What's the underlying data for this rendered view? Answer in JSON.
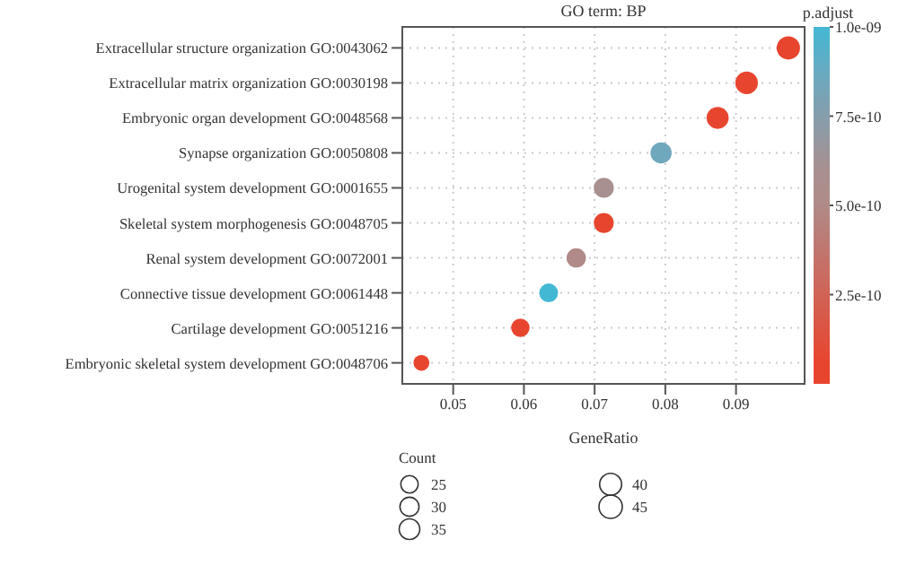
{
  "chart_data": {
    "type": "bubble",
    "orientation": "horizontal",
    "title": "GO term: BP",
    "xlabel": "GeneRatio",
    "clabel": "p.adjust",
    "legend_title": "Count",
    "grid": true,
    "categories": [
      "Extracellular structure organization GO:0043062",
      "Extracellular matrix organization GO:0030198",
      "Embryonic organ development GO:0048568",
      "Synapse organization GO:0050808",
      "Urogenital system development GO:0001655",
      "Skeletal system morphogenesis GO:0048705",
      "Renal system development GO:0072001",
      "Connective tissue development GO:0061448",
      "Cartilage development GO:0051216",
      "Embryonic skeletal system development GO:0048706"
    ],
    "values": [
      0.0974,
      0.0915,
      0.0874,
      0.0794,
      0.0713,
      0.0713,
      0.0674,
      0.0635,
      0.0595,
      0.0455
    ],
    "sizes": [
      45,
      42,
      40,
      37,
      33,
      33,
      31,
      29,
      28,
      21
    ],
    "size_legend": [
      25,
      30,
      35,
      40,
      45
    ],
    "cvalues": [
      2e-11,
      3e-11,
      4e-11,
      8.5e-10,
      6e-10,
      5e-11,
      5e-10,
      1e-09,
      6e-11,
      2e-11
    ],
    "colors": [
      "#e8452f",
      "#e8452f",
      "#e8452f",
      "#6fa7bd",
      "#a89090",
      "#e8452f",
      "#b08a88",
      "#43b8d4",
      "#e8452f",
      "#e8452f"
    ],
    "clim": [
      0,
      1e-09
    ],
    "cticks": [
      {
        "value": 2.5e-10,
        "label": "2.5e-10"
      },
      {
        "value": 5e-10,
        "label": "5.0e-10"
      },
      {
        "value": 7.5e-10,
        "label": "7.5e-10"
      },
      {
        "value": 1e-09,
        "label": "1.0e-09"
      }
    ],
    "xlim": [
      0.0428,
      0.0997
    ],
    "xticks": [
      0.05,
      0.06,
      0.07,
      0.08,
      0.09
    ]
  }
}
